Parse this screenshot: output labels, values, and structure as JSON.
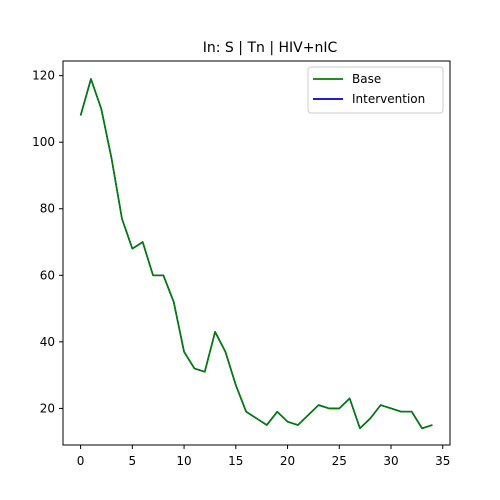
{
  "chart_data": {
    "type": "line",
    "title": "In: S | Tn | HIV+nIC",
    "xlabel": "",
    "ylabel": "",
    "xlim": [
      -1.7,
      35.7
    ],
    "ylim": [
      9.0,
      124.4
    ],
    "xticks": [
      0,
      5,
      10,
      15,
      20,
      25,
      30,
      35
    ],
    "yticks": [
      20,
      40,
      60,
      80,
      100,
      120
    ],
    "grid": false,
    "legend_position": "top-right",
    "x": [
      0,
      1,
      2,
      3,
      4,
      5,
      6,
      7,
      8,
      9,
      10,
      11,
      12,
      13,
      14,
      15,
      16,
      17,
      18,
      19,
      20,
      21,
      22,
      23,
      24,
      25,
      26,
      27,
      28,
      29,
      30,
      31,
      32,
      33,
      34
    ],
    "series": [
      {
        "name": "Base",
        "color": "#008000",
        "values": [
          108,
          119,
          110,
          95,
          77,
          68,
          70,
          60,
          60,
          52,
          37,
          32,
          31,
          43,
          37,
          27,
          19,
          17,
          15,
          19,
          16,
          15,
          18,
          21,
          20,
          20,
          23,
          14,
          17,
          21,
          20,
          19,
          19,
          14,
          15
        ]
      },
      {
        "name": "Intervention",
        "color": "#0000cc",
        "values": [
          108,
          119,
          110,
          95,
          77,
          68,
          70,
          60,
          60,
          52,
          37,
          32,
          31,
          43,
          37,
          27,
          19,
          17,
          15,
          19,
          16,
          15,
          18,
          21,
          20,
          20,
          23,
          14,
          17,
          21,
          20,
          19,
          19,
          14,
          15
        ]
      }
    ]
  }
}
